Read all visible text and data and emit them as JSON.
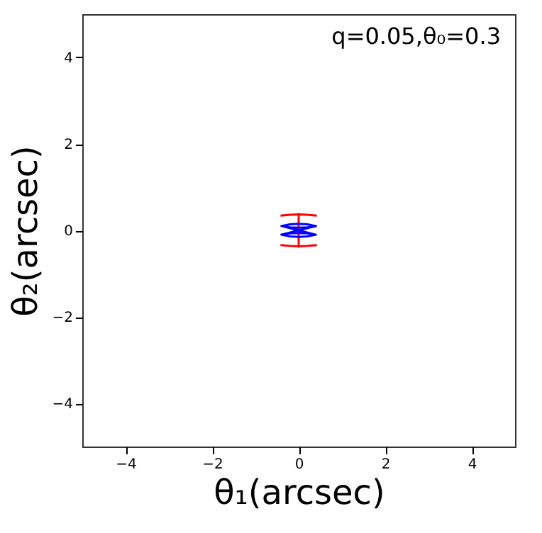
{
  "chart_data": {
    "type": "line",
    "xlabel": "θ₁(arcsec)",
    "ylabel": "θ₂(arcsec)",
    "annotations": [
      "q=0.05,θ₀=0.3"
    ],
    "xlim": [
      -5,
      5
    ],
    "ylim": [
      -5,
      5
    ],
    "xticks": [
      -4,
      -2,
      0,
      2,
      4
    ],
    "yticks": [
      -4,
      -2,
      0,
      2,
      4
    ],
    "grid": false,
    "marker": "none",
    "line_style": "solid",
    "series": [
      {
        "color": "#ff0000",
        "x": [
          -0.42,
          -0.2,
          0,
          0.2,
          0.42
        ],
        "values": [
          0.34,
          0.36,
          0.37,
          0.36,
          0.34
        ]
      },
      {
        "color": "#ff0000",
        "x": [
          -0.42,
          -0.2,
          0,
          0.2,
          0.42
        ],
        "values": [
          -0.34,
          -0.36,
          -0.37,
          -0.36,
          -0.34
        ]
      },
      {
        "color": "#ff0000",
        "x": [
          0,
          0
        ],
        "values": [
          -0.4,
          0.4
        ]
      },
      {
        "color": "#0000ff",
        "x": [
          -0.4,
          -0.2,
          0,
          0.2,
          0.4,
          0.2,
          0,
          -0.2,
          -0.4,
          0,
          0.4,
          0.2,
          0,
          -0.2,
          -0.4,
          -0.2,
          0,
          0.2,
          0.4
        ],
        "values": [
          0.1,
          0.14,
          0.15,
          0.14,
          0.1,
          0.07,
          0.06,
          0.07,
          0.1,
          0,
          -0.1,
          -0.07,
          -0.06,
          -0.07,
          -0.1,
          -0.14,
          -0.15,
          -0.14,
          -0.1
        ]
      },
      {
        "color": "#0000ff",
        "x": [
          -0.4,
          0,
          0.4
        ],
        "values": [
          -0.1,
          0,
          0.1
        ]
      }
    ]
  }
}
